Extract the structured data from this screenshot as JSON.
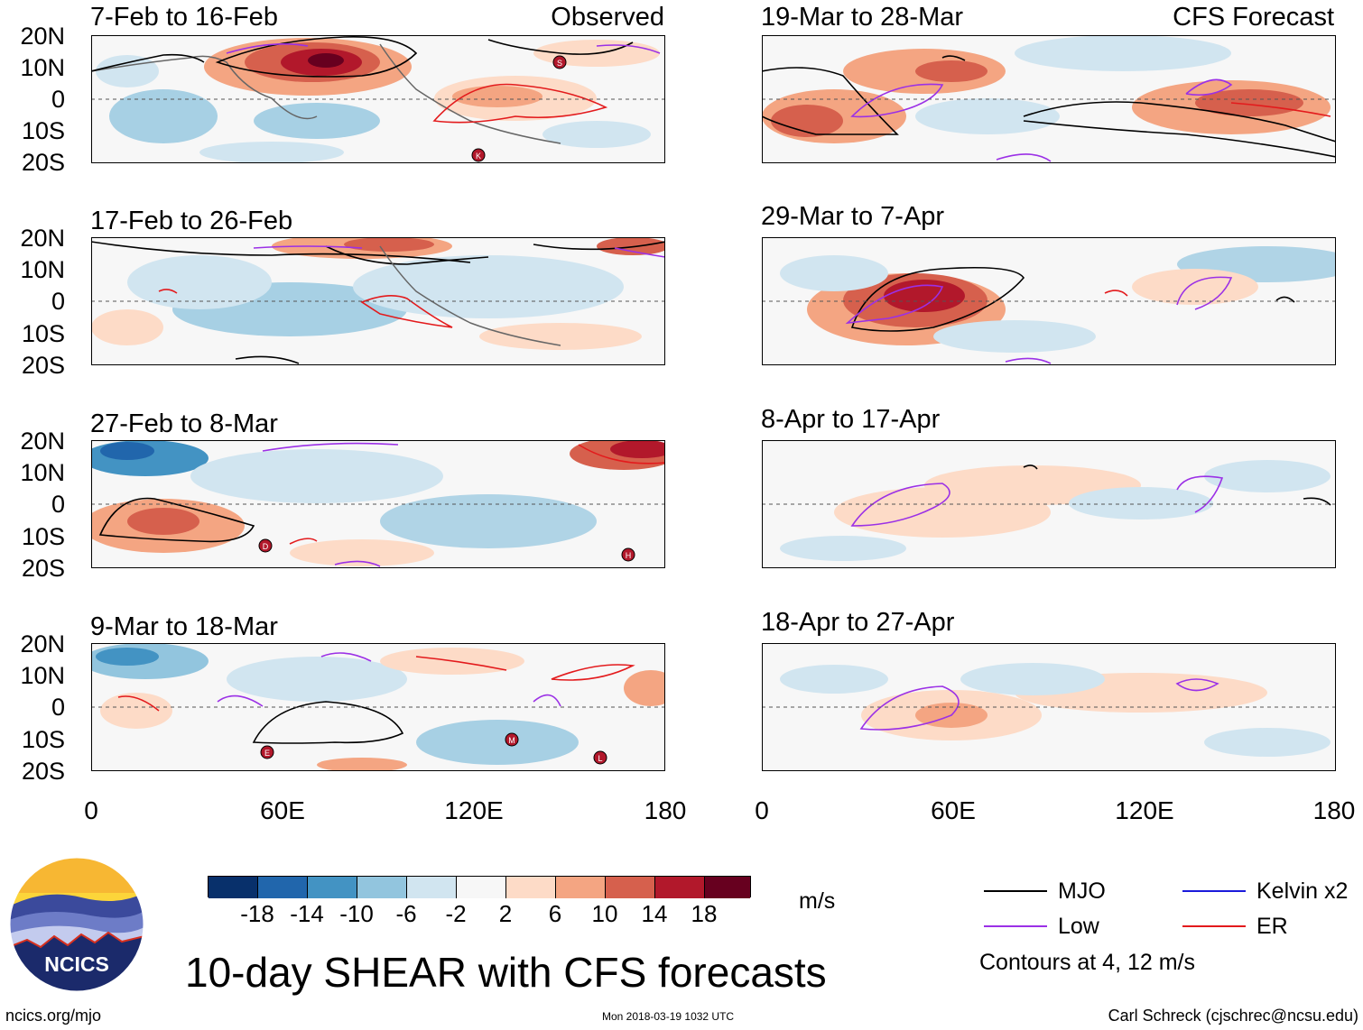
{
  "panels": [
    {
      "id": "p1",
      "title": "7-Feb to 16-Feb",
      "label": "Observed",
      "column": "left",
      "row": 0
    },
    {
      "id": "p2",
      "title": "17-Feb to 26-Feb",
      "label": "",
      "column": "left",
      "row": 1
    },
    {
      "id": "p3",
      "title": "27-Feb to 8-Mar",
      "label": "",
      "column": "left",
      "row": 2
    },
    {
      "id": "p4",
      "title": "9-Mar to 18-Mar",
      "label": "",
      "column": "left",
      "row": 3
    },
    {
      "id": "p5",
      "title": "19-Mar to 28-Mar",
      "label": "CFS Forecast",
      "column": "right",
      "row": 0
    },
    {
      "id": "p6",
      "title": "29-Mar to 7-Apr",
      "label": "",
      "column": "right",
      "row": 1
    },
    {
      "id": "p7",
      "title": "8-Apr to 17-Apr",
      "label": "",
      "column": "right",
      "row": 2
    },
    {
      "id": "p8",
      "title": "18-Apr to 27-Apr",
      "label": "",
      "column": "right",
      "row": 3
    }
  ],
  "y_labels": [
    "20N",
    "10N",
    "0",
    "10S",
    "20S"
  ],
  "x_labels": [
    "0",
    "60E",
    "120E",
    "180"
  ],
  "colorbar": {
    "colors": [
      "#08306b",
      "#2166ac",
      "#4393c3",
      "#92c5de",
      "#d1e5f0",
      "#f7f7f7",
      "#fddbc7",
      "#f4a582",
      "#d6604d",
      "#b2182b",
      "#67001f"
    ],
    "labels": [
      "-18",
      "-14",
      "-10",
      "-6",
      "-2",
      "2",
      "6",
      "10",
      "14",
      "18"
    ],
    "units": "m/s"
  },
  "legend": {
    "items": [
      {
        "label": "MJO",
        "color": "#000000"
      },
      {
        "label": "Kelvin x2",
        "color": "#1a1adb"
      },
      {
        "label": "Low",
        "color": "#9b30e6"
      },
      {
        "label": "ER",
        "color": "#e31a1c"
      }
    ],
    "note": "Contours at 4, 12 m/s"
  },
  "main_title": "10-day SHEAR with CFS forecasts",
  "logo_text": "NCICS",
  "footer": {
    "left": "ncics.org/mjo",
    "center": "Mon 2018-03-19 1032 UTC",
    "right": "Carl Schreck (cjschrec@ncsu.edu)"
  },
  "storms": [
    {
      "panel": "p1",
      "letter": "S"
    },
    {
      "panel": "p1",
      "letter": "K"
    },
    {
      "panel": "p3",
      "letter": "D"
    },
    {
      "panel": "p3",
      "letter": "H"
    },
    {
      "panel": "p4",
      "letter": "E"
    },
    {
      "panel": "p4",
      "letter": "M"
    },
    {
      "panel": "p4",
      "letter": "L"
    }
  ]
}
